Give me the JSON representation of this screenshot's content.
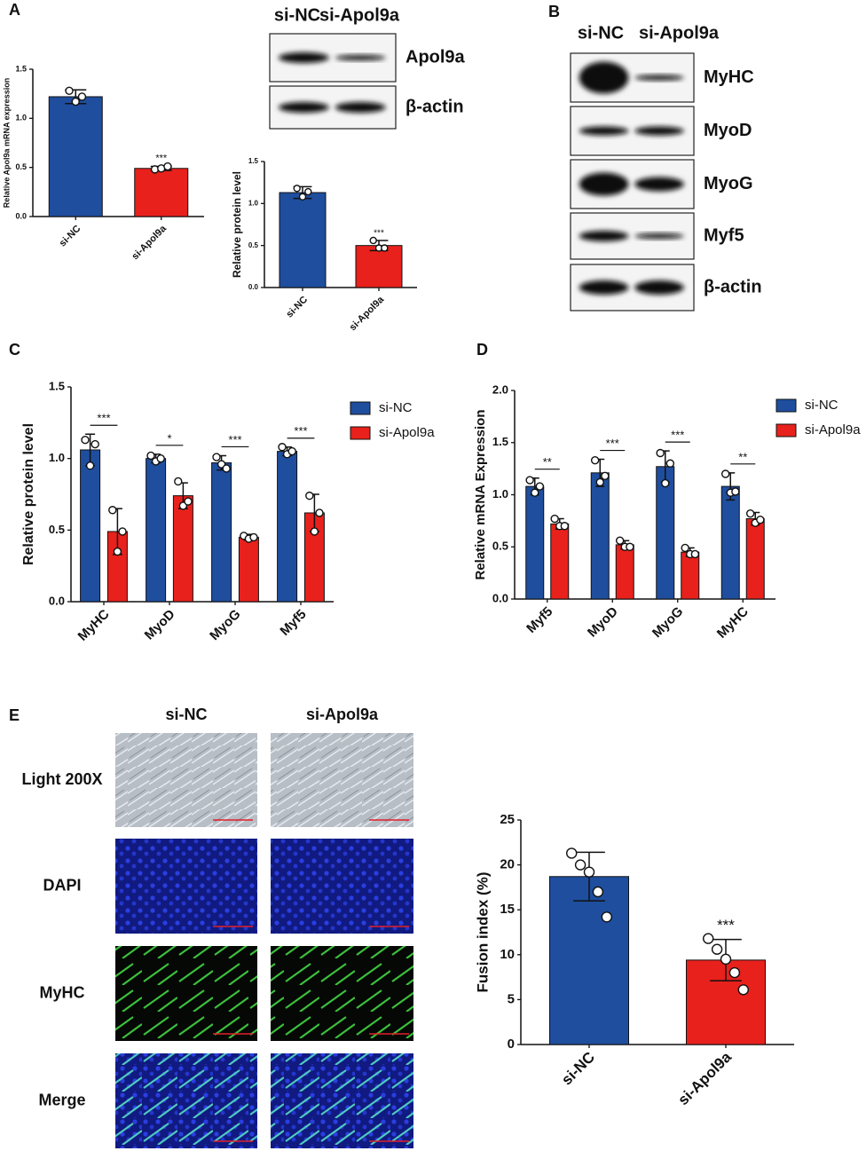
{
  "panel_labels": [
    "A",
    "B",
    "C",
    "D",
    "E"
  ],
  "blot_a": {
    "columns": [
      "si-NC",
      "si-Apol9a"
    ],
    "rows": [
      "Apol9a",
      "β-actin"
    ]
  },
  "blot_b": {
    "columns": [
      "si-NC",
      "si-Apol9a"
    ],
    "rows": [
      "MyHC",
      "MyoD",
      "MyoG",
      "Myf5",
      "β-actin"
    ]
  },
  "images": {
    "columns": [
      "si-NC",
      "si-Apol9a"
    ],
    "rows": [
      "Light 200X",
      "DAPI",
      "MyHC",
      "Merge"
    ]
  },
  "chart_data": [
    {
      "type": "bar",
      "y_label": "Relative Apol9a mRNA expression",
      "categories": [
        "si-NC",
        "si-Apol9a"
      ],
      "values": [
        1.22,
        0.49
      ],
      "errors": [
        0.07,
        0.02
      ],
      "points": [
        [
          1.28,
          1.17,
          1.22
        ],
        [
          0.48,
          0.49,
          0.51
        ]
      ],
      "colors": [
        "#1f4e9e",
        "#e8211c"
      ],
      "ylim": [
        0,
        1.5
      ],
      "yticks": [
        {
          "value": 0,
          "label": "0.0"
        },
        {
          "value": 0.5,
          "label": "0.5"
        },
        {
          "value": 1,
          "label": "1.0"
        },
        {
          "value": 1.5,
          "label": "1.5"
        }
      ],
      "significance": "***"
    },
    {
      "type": "bar",
      "y_label": "Relative protein level",
      "categories": [
        "si-NC",
        "si-Apol9a"
      ],
      "values": [
        1.13,
        0.5
      ],
      "errors": [
        0.07,
        0.06
      ],
      "points": [
        [
          1.18,
          1.08,
          1.14
        ],
        [
          0.56,
          0.47,
          0.47
        ]
      ],
      "colors": [
        "#1f4e9e",
        "#e8211c"
      ],
      "ylim": [
        0,
        1.5
      ],
      "yticks": [
        {
          "value": 0,
          "label": "0.0"
        },
        {
          "value": 0.5,
          "label": "0.5"
        },
        {
          "value": 1,
          "label": "1.0"
        },
        {
          "value": 1.5,
          "label": "1.5"
        }
      ],
      "significance": "***"
    },
    {
      "type": "grouped_bar",
      "y_label": "Relative protein level",
      "categories": [
        "MyHC",
        "MyoD",
        "MyoG",
        "Myf5"
      ],
      "series": [
        {
          "name": "si-NC",
          "color": "#1f4e9e",
          "values": [
            1.06,
            1.0,
            0.97,
            1.05
          ],
          "errors": [
            0.11,
            0.03,
            0.05,
            0.03
          ],
          "points": [
            [
              1.13,
              0.95,
              1.1
            ],
            [
              1.02,
              0.98,
              1.0
            ],
            [
              1.01,
              0.96,
              0.93
            ],
            [
              1.08,
              1.03,
              1.05
            ]
          ]
        },
        {
          "name": "si-Apol9a",
          "color": "#e8211c",
          "values": [
            0.49,
            0.74,
            0.45,
            0.62
          ],
          "errors": [
            0.16,
            0.09,
            0.02,
            0.13
          ],
          "points": [
            [
              0.64,
              0.35,
              0.49
            ],
            [
              0.84,
              0.67,
              0.7
            ],
            [
              0.46,
              0.44,
              0.45
            ],
            [
              0.74,
              0.49,
              0.62
            ]
          ]
        }
      ],
      "ylim": [
        0,
        1.5
      ],
      "yticks": [
        {
          "value": 0,
          "label": "0.0"
        },
        {
          "value": 0.5,
          "label": "0.5"
        },
        {
          "value": 1,
          "label": "1.0"
        },
        {
          "value": 1.5,
          "label": "1.5"
        }
      ],
      "significance": [
        "***",
        "*",
        "***",
        "***"
      ]
    },
    {
      "type": "grouped_bar",
      "y_label": "Relative mRNA Expression",
      "categories": [
        "Myf5",
        "MyoD",
        "MyoG",
        "MyHC"
      ],
      "series": [
        {
          "name": "si-NC",
          "color": "#1f4e9e",
          "values": [
            1.08,
            1.21,
            1.27,
            1.08
          ],
          "errors": [
            0.08,
            0.13,
            0.15,
            0.13
          ],
          "points": [
            [
              1.14,
              1.02,
              1.08
            ],
            [
              1.33,
              1.12,
              1.18
            ],
            [
              1.4,
              1.11,
              1.3
            ],
            [
              1.2,
              1.02,
              1.03
            ]
          ]
        },
        {
          "name": "si-Apol9a",
          "color": "#e8211c",
          "values": [
            0.72,
            0.52,
            0.45,
            0.77
          ],
          "errors": [
            0.05,
            0.04,
            0.04,
            0.06
          ],
          "points": [
            [
              0.77,
              0.7,
              0.7
            ],
            [
              0.56,
              0.5,
              0.5
            ],
            [
              0.49,
              0.43,
              0.43
            ],
            [
              0.82,
              0.73,
              0.76
            ]
          ]
        }
      ],
      "ylim": [
        0,
        2
      ],
      "yticks": [
        {
          "value": 0,
          "label": "0.0"
        },
        {
          "value": 0.5,
          "label": "0.5"
        },
        {
          "value": 1,
          "label": "1.0"
        },
        {
          "value": 1.5,
          "label": "1.5"
        },
        {
          "value": 2,
          "label": "2.0"
        }
      ],
      "significance": [
        "**",
        "***",
        "***",
        "**"
      ]
    },
    {
      "type": "bar",
      "y_label": "Fusion index (%)",
      "categories": [
        "si-NC",
        "si-Apol9a"
      ],
      "values": [
        18.7,
        9.4
      ],
      "errors": [
        2.7,
        2.3
      ],
      "points": [
        [
          21.3,
          20.0,
          19.2,
          17.0,
          14.2
        ],
        [
          11.8,
          10.6,
          9.5,
          8.0,
          6.1
        ]
      ],
      "colors": [
        "#1f4e9e",
        "#e8211c"
      ],
      "ylim": [
        0,
        25
      ],
      "yticks": [
        0,
        5,
        10,
        15,
        20,
        25
      ],
      "significance": "***"
    }
  ]
}
